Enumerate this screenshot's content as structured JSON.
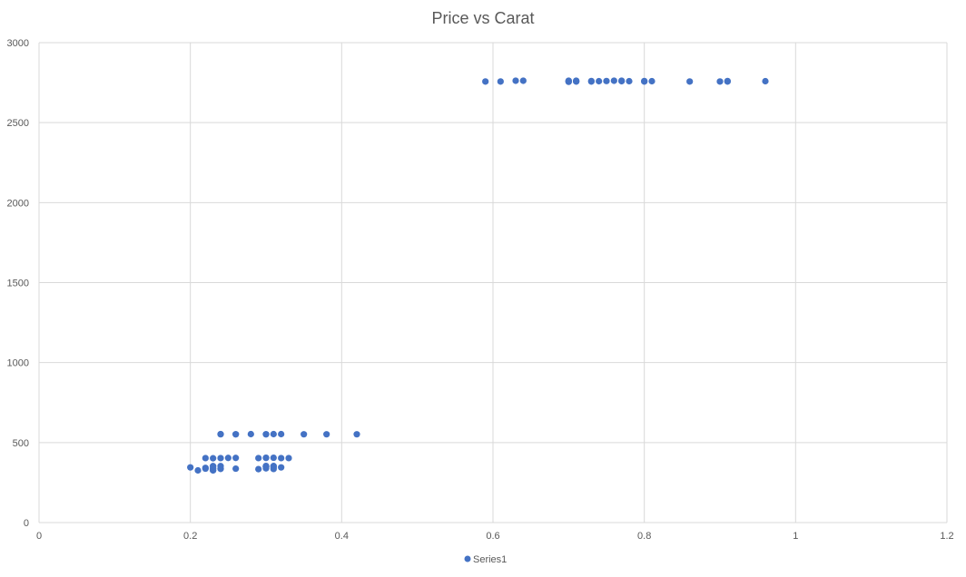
{
  "chart_data": {
    "type": "scatter",
    "title": "Price vs Carat",
    "xlabel": "",
    "ylabel": "",
    "xlim": [
      0,
      1.2
    ],
    "ylim": [
      0,
      3000
    ],
    "x_ticks": [
      "0",
      "0.2",
      "0.4",
      "0.6",
      "0.8",
      "1",
      "1.2"
    ],
    "y_ticks": [
      "0",
      "500",
      "1000",
      "1500",
      "2000",
      "2500",
      "3000"
    ],
    "grid": true,
    "legend_position": "bottom",
    "series": [
      {
        "name": "Series1",
        "color": "#4472c4",
        "points": [
          {
            "x": 0.23,
            "y": 326
          },
          {
            "x": 0.21,
            "y": 326
          },
          {
            "x": 0.23,
            "y": 327
          },
          {
            "x": 0.29,
            "y": 334
          },
          {
            "x": 0.31,
            "y": 335
          },
          {
            "x": 0.24,
            "y": 336
          },
          {
            "x": 0.24,
            "y": 336
          },
          {
            "x": 0.26,
            "y": 337
          },
          {
            "x": 0.22,
            "y": 337
          },
          {
            "x": 0.23,
            "y": 338
          },
          {
            "x": 0.3,
            "y": 339
          },
          {
            "x": 0.23,
            "y": 340
          },
          {
            "x": 0.22,
            "y": 342
          },
          {
            "x": 0.31,
            "y": 344
          },
          {
            "x": 0.2,
            "y": 345
          },
          {
            "x": 0.32,
            "y": 345
          },
          {
            "x": 0.3,
            "y": 348
          },
          {
            "x": 0.3,
            "y": 351
          },
          {
            "x": 0.3,
            "y": 351
          },
          {
            "x": 0.3,
            "y": 351
          },
          {
            "x": 0.3,
            "y": 351
          },
          {
            "x": 0.23,
            "y": 352
          },
          {
            "x": 0.23,
            "y": 353
          },
          {
            "x": 0.31,
            "y": 353
          },
          {
            "x": 0.31,
            "y": 353
          },
          {
            "x": 0.24,
            "y": 353
          },
          {
            "x": 0.3,
            "y": 354
          },
          {
            "x": 0.23,
            "y": 402
          },
          {
            "x": 0.22,
            "y": 403
          },
          {
            "x": 0.24,
            "y": 403
          },
          {
            "x": 0.25,
            "y": 404
          },
          {
            "x": 0.26,
            "y": 404
          },
          {
            "x": 0.29,
            "y": 403
          },
          {
            "x": 0.3,
            "y": 404
          },
          {
            "x": 0.31,
            "y": 405
          },
          {
            "x": 0.32,
            "y": 403
          },
          {
            "x": 0.33,
            "y": 403
          },
          {
            "x": 0.3,
            "y": 405
          },
          {
            "x": 0.24,
            "y": 552
          },
          {
            "x": 0.24,
            "y": 553
          },
          {
            "x": 0.26,
            "y": 552
          },
          {
            "x": 0.26,
            "y": 552
          },
          {
            "x": 0.28,
            "y": 553
          },
          {
            "x": 0.3,
            "y": 552
          },
          {
            "x": 0.3,
            "y": 552
          },
          {
            "x": 0.31,
            "y": 553
          },
          {
            "x": 0.32,
            "y": 553
          },
          {
            "x": 0.35,
            "y": 552
          },
          {
            "x": 0.38,
            "y": 552
          },
          {
            "x": 0.42,
            "y": 552
          },
          {
            "x": 0.59,
            "y": 2757
          },
          {
            "x": 0.61,
            "y": 2757
          },
          {
            "x": 0.63,
            "y": 2762
          },
          {
            "x": 0.64,
            "y": 2762
          },
          {
            "x": 0.7,
            "y": 2757
          },
          {
            "x": 0.7,
            "y": 2760
          },
          {
            "x": 0.7,
            "y": 2762
          },
          {
            "x": 0.7,
            "y": 2755
          },
          {
            "x": 0.71,
            "y": 2762
          },
          {
            "x": 0.71,
            "y": 2757
          },
          {
            "x": 0.71,
            "y": 2759
          },
          {
            "x": 0.73,
            "y": 2760
          },
          {
            "x": 0.73,
            "y": 2757
          },
          {
            "x": 0.74,
            "y": 2759
          },
          {
            "x": 0.75,
            "y": 2760
          },
          {
            "x": 0.76,
            "y": 2762
          },
          {
            "x": 0.77,
            "y": 2762
          },
          {
            "x": 0.77,
            "y": 2759
          },
          {
            "x": 0.78,
            "y": 2759
          },
          {
            "x": 0.8,
            "y": 2760
          },
          {
            "x": 0.8,
            "y": 2757
          },
          {
            "x": 0.81,
            "y": 2759
          },
          {
            "x": 0.86,
            "y": 2757
          },
          {
            "x": 0.9,
            "y": 2757
          },
          {
            "x": 0.91,
            "y": 2760
          },
          {
            "x": 0.91,
            "y": 2757
          },
          {
            "x": 0.96,
            "y": 2759
          }
        ]
      }
    ]
  }
}
